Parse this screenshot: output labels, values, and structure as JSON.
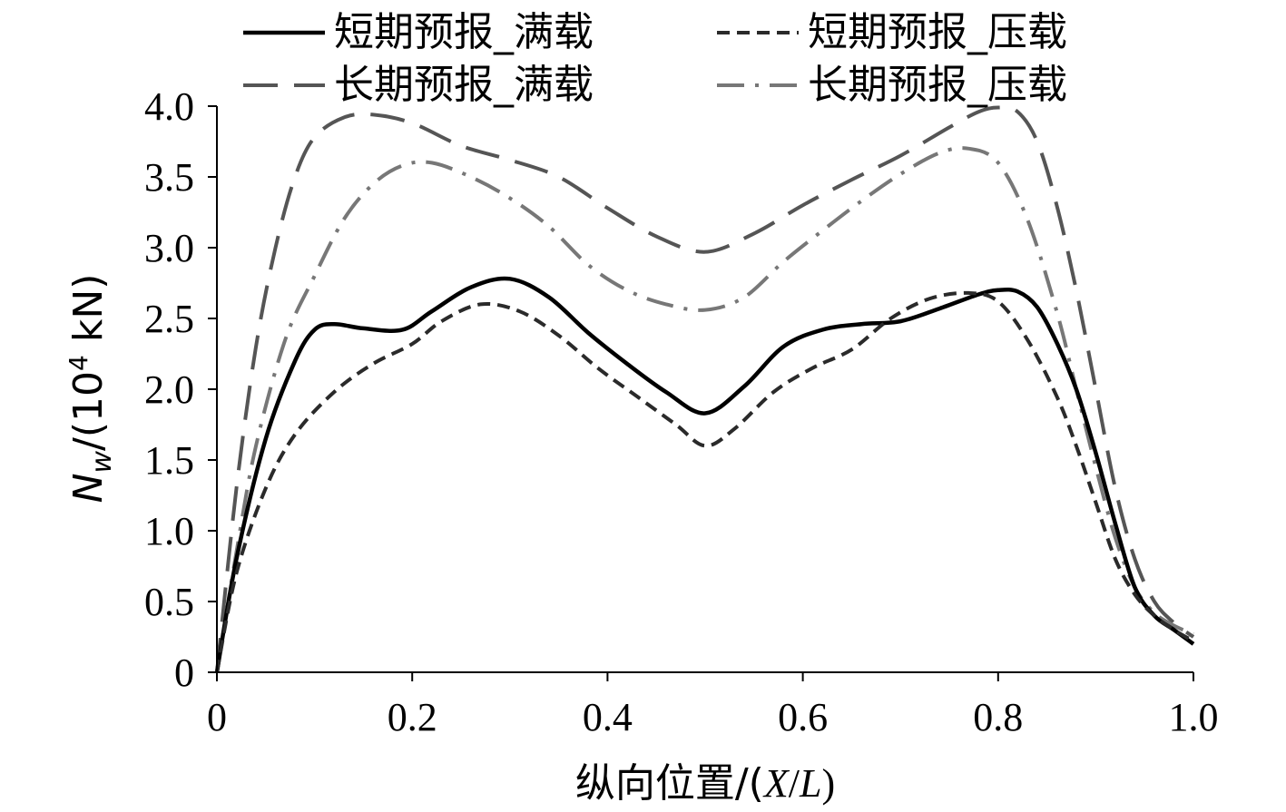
{
  "chart_data": {
    "type": "line",
    "xlabel": "纵向位置/(X/L)",
    "ylabel": "N_w/(10^4 kN)",
    "ylabel_parts": {
      "n": "N",
      "sub": "w",
      "mid": "/(10",
      "sup": "4",
      "unit": " kN)"
    },
    "xlabel_parts": {
      "prefix": "纵向位置/(",
      "x": "X",
      "slash": "/",
      "l": "L",
      "suffix": ")"
    },
    "xlim": [
      0,
      1.0
    ],
    "ylim": [
      0,
      4.0
    ],
    "x_ticks": [
      0,
      0.2,
      0.4,
      0.6,
      0.8,
      1.0
    ],
    "x_tick_labels": [
      "0",
      "0.2",
      "0.4",
      "0.6",
      "0.8",
      "1.0"
    ],
    "y_ticks": [
      0,
      0.5,
      1.0,
      1.5,
      2.0,
      2.5,
      3.0,
      3.5,
      4.0
    ],
    "y_tick_labels": [
      "0",
      "0.5",
      "1.0",
      "1.5",
      "2.0",
      "2.5",
      "3.0",
      "3.5",
      "4.0"
    ],
    "grid": false,
    "legend_position": "top",
    "series": [
      {
        "name": "短期预报_满载",
        "color": "#000000",
        "style": "solid",
        "x": [
          0,
          0.02,
          0.05,
          0.08,
          0.1,
          0.12,
          0.15,
          0.19,
          0.22,
          0.26,
          0.3,
          0.34,
          0.38,
          0.42,
          0.46,
          0.5,
          0.54,
          0.58,
          0.62,
          0.66,
          0.7,
          0.74,
          0.78,
          0.8,
          0.82,
          0.84,
          0.86,
          0.88,
          0.9,
          0.92,
          0.94,
          0.96,
          0.98,
          1.0
        ],
        "y": [
          0,
          0.8,
          1.65,
          2.2,
          2.42,
          2.46,
          2.43,
          2.42,
          2.55,
          2.72,
          2.78,
          2.65,
          2.4,
          2.18,
          1.98,
          1.83,
          2.02,
          2.3,
          2.42,
          2.46,
          2.48,
          2.57,
          2.67,
          2.7,
          2.69,
          2.58,
          2.33,
          2.0,
          1.55,
          1.05,
          0.6,
          0.4,
          0.3,
          0.2
        ]
      },
      {
        "name": "短期预报_压载",
        "color": "#2a2a2a",
        "style": "short-dash",
        "x": [
          0,
          0.02,
          0.05,
          0.08,
          0.12,
          0.16,
          0.2,
          0.23,
          0.27,
          0.31,
          0.35,
          0.39,
          0.43,
          0.47,
          0.5,
          0.53,
          0.57,
          0.61,
          0.65,
          0.69,
          0.73,
          0.77,
          0.8,
          0.83,
          0.86,
          0.88,
          0.9,
          0.92,
          0.94,
          0.96,
          0.98,
          1.0
        ],
        "y": [
          0,
          0.7,
          1.3,
          1.68,
          1.98,
          2.18,
          2.32,
          2.48,
          2.6,
          2.55,
          2.38,
          2.15,
          1.95,
          1.75,
          1.6,
          1.72,
          1.98,
          2.15,
          2.28,
          2.5,
          2.64,
          2.68,
          2.62,
          2.35,
          1.95,
          1.6,
          1.2,
          0.8,
          0.55,
          0.4,
          0.3,
          0.22
        ]
      },
      {
        "name": "长期预报_满载",
        "color": "#555555",
        "style": "long-dash",
        "x": [
          0,
          0.02,
          0.04,
          0.06,
          0.08,
          0.1,
          0.13,
          0.16,
          0.2,
          0.25,
          0.3,
          0.35,
          0.4,
          0.45,
          0.5,
          0.55,
          0.6,
          0.65,
          0.7,
          0.75,
          0.78,
          0.8,
          0.82,
          0.84,
          0.86,
          0.88,
          0.9,
          0.92,
          0.94,
          0.96,
          0.98,
          1.0
        ],
        "y": [
          0,
          1.3,
          2.3,
          3.0,
          3.5,
          3.78,
          3.92,
          3.94,
          3.88,
          3.72,
          3.62,
          3.5,
          3.28,
          3.08,
          2.97,
          3.1,
          3.3,
          3.48,
          3.65,
          3.85,
          3.96,
          3.99,
          3.96,
          3.75,
          3.3,
          2.7,
          2.0,
          1.3,
          0.8,
          0.5,
          0.35,
          0.25
        ]
      },
      {
        "name": "长期预报_压载",
        "color": "#777777",
        "style": "dash-dot",
        "x": [
          0,
          0.02,
          0.04,
          0.07,
          0.1,
          0.13,
          0.16,
          0.19,
          0.22,
          0.26,
          0.3,
          0.34,
          0.38,
          0.42,
          0.46,
          0.5,
          0.54,
          0.58,
          0.62,
          0.66,
          0.7,
          0.74,
          0.77,
          0.8,
          0.83,
          0.86,
          0.88,
          0.9,
          0.92,
          0.94,
          0.96,
          0.98,
          1.0
        ],
        "y": [
          0,
          0.85,
          1.6,
          2.35,
          2.8,
          3.2,
          3.45,
          3.58,
          3.6,
          3.5,
          3.35,
          3.15,
          2.88,
          2.7,
          2.6,
          2.56,
          2.65,
          2.9,
          3.12,
          3.33,
          3.52,
          3.67,
          3.7,
          3.6,
          3.2,
          2.55,
          2.0,
          1.45,
          0.95,
          0.6,
          0.42,
          0.33,
          0.27
        ]
      }
    ]
  }
}
